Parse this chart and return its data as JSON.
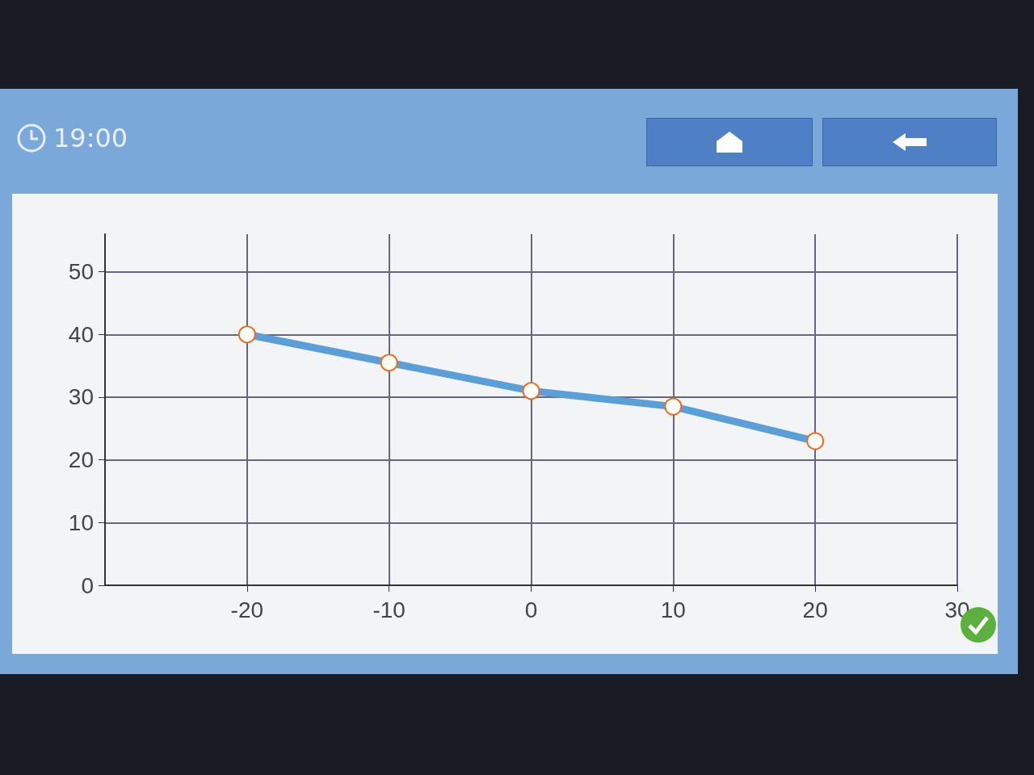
{
  "chart_data": {
    "type": "line",
    "x": [
      -20,
      -10,
      0,
      10,
      20
    ],
    "series": [
      {
        "color": "#5b9fd8",
        "values": [
          40,
          35.5,
          31,
          28.5,
          23
        ]
      }
    ],
    "xlim": [
      -30,
      30
    ],
    "xticks": [
      -20,
      -10,
      0,
      10,
      20,
      30
    ],
    "ylim": [
      0,
      56
    ],
    "yticks": [
      0,
      10,
      20,
      30,
      40,
      50
    ],
    "grid": true,
    "marker": "circle",
    "line_style": "solid",
    "annotations": [
      "19:00"
    ]
  }
}
